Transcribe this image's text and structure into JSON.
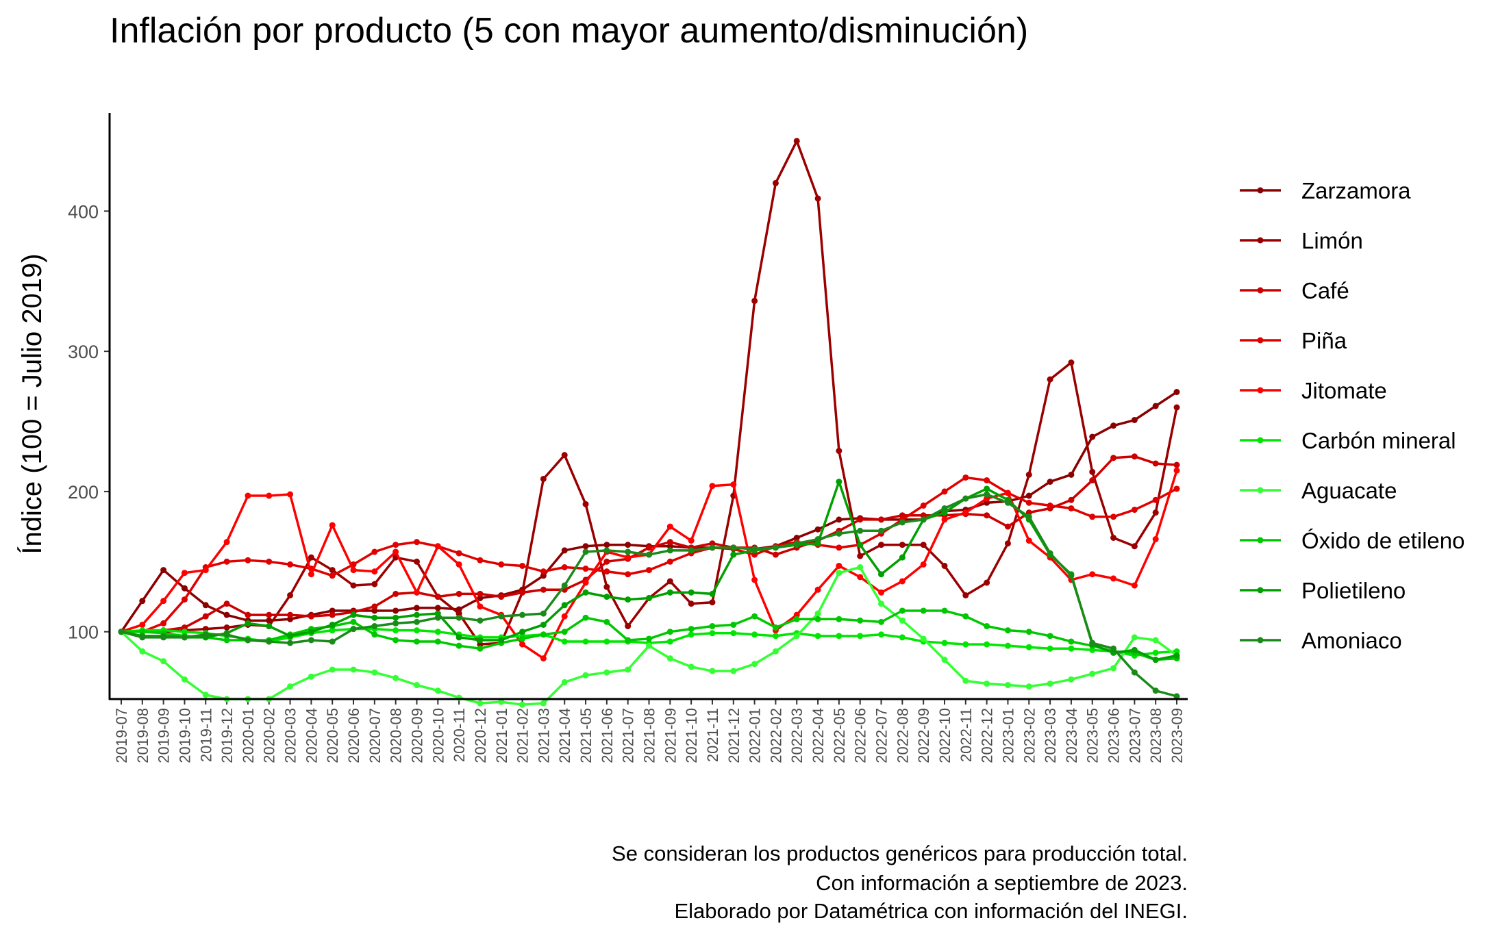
{
  "chart_data": {
    "type": "line",
    "title": "Inflación por producto (5 con mayor aumento/disminución)",
    "ylabel": "Índice (100 = Julio 2019)",
    "xlabel": "",
    "ylim": [
      52,
      470
    ],
    "yticks": [
      100,
      200,
      300,
      400
    ],
    "grid": false,
    "legend_position": "right",
    "caption": [
      "Se consideran los productos genéricos para producción total.",
      "Con información a septiembre de 2023.",
      "Elaborado por Datamétrica con información del INEGI."
    ],
    "categories": [
      "2019-07",
      "2019-08",
      "2019-09",
      "2019-10",
      "2019-11",
      "2019-12",
      "2020-01",
      "2020-02",
      "2020-03",
      "2020-04",
      "2020-05",
      "2020-06",
      "2020-07",
      "2020-08",
      "2020-09",
      "2020-10",
      "2020-11",
      "2020-12",
      "2021-01",
      "2021-02",
      "2021-03",
      "2021-04",
      "2021-05",
      "2021-06",
      "2021-07",
      "2021-08",
      "2021-09",
      "2021-10",
      "2021-11",
      "2021-12",
      "2022-01",
      "2022-02",
      "2022-03",
      "2022-04",
      "2022-05",
      "2022-06",
      "2022-07",
      "2022-08",
      "2022-09",
      "2022-10",
      "2022-11",
      "2022-12",
      "2023-01",
      "2023-02",
      "2023-03",
      "2023-04",
      "2023-05",
      "2023-06",
      "2023-07",
      "2023-08",
      "2023-09"
    ],
    "series": [
      {
        "name": "Zarzamora",
        "color": "#8B0000",
        "values": [
          100,
          122,
          144,
          131,
          119,
          112,
          108,
          108,
          109,
          112,
          115,
          115,
          115,
          115,
          117,
          117,
          116,
          124,
          126,
          130,
          140,
          158,
          161,
          162,
          162,
          161,
          161,
          160,
          160,
          160,
          159,
          161,
          167,
          173,
          180,
          181,
          180,
          180,
          180,
          186,
          187,
          192,
          193,
          197,
          207,
          212,
          239,
          247,
          251,
          261,
          271
        ]
      },
      {
        "name": "Limón",
        "color": "#9B0000",
        "values": [
          100,
          100,
          100,
          101,
          102,
          103,
          105,
          104,
          126,
          153,
          144,
          133,
          134,
          153,
          150,
          125,
          113,
          91,
          92,
          128,
          209,
          226,
          191,
          132,
          104,
          124,
          136,
          120,
          121,
          197,
          336,
          420,
          450,
          409,
          229,
          154,
          162,
          162,
          162,
          147,
          126,
          135,
          163,
          212,
          280,
          292,
          214,
          167,
          161,
          185,
          260
        ]
      },
      {
        "name": "Café",
        "color": "#CC0000",
        "values": [
          100,
          100,
          101,
          103,
          111,
          120,
          112,
          112,
          112,
          111,
          112,
          114,
          118,
          127,
          128,
          125,
          127,
          127,
          125,
          128,
          130,
          130,
          137,
          150,
          152,
          160,
          164,
          160,
          163,
          160,
          160,
          155,
          160,
          165,
          172,
          180,
          180,
          183,
          183,
          183,
          184,
          183,
          175,
          185,
          188,
          194,
          208,
          224,
          225,
          220,
          219
        ]
      },
      {
        "name": "Piña",
        "color": "#E00000",
        "values": [
          100,
          100,
          106,
          123,
          146,
          150,
          151,
          150,
          148,
          145,
          140,
          148,
          157,
          162,
          164,
          161,
          156,
          151,
          148,
          147,
          143,
          146,
          145,
          143,
          141,
          144,
          150,
          156,
          160,
          159,
          155,
          161,
          164,
          162,
          160,
          162,
          170,
          180,
          190,
          200,
          210,
          208,
          199,
          192,
          190,
          188,
          182,
          182,
          187,
          194,
          202
        ]
      },
      {
        "name": "Jitomate",
        "color": "#FF0000",
        "values": [
          100,
          105,
          122,
          142,
          144,
          164,
          197,
          197,
          198,
          141,
          176,
          144,
          143,
          157,
          128,
          161,
          148,
          118,
          112,
          91,
          81,
          111,
          135,
          157,
          153,
          155,
          175,
          165,
          204,
          205,
          137,
          101,
          112,
          130,
          147,
          139,
          128,
          136,
          148,
          180,
          185,
          195,
          199,
          165,
          153,
          137,
          141,
          138,
          133,
          166,
          215
        ]
      },
      {
        "name": "Carbón mineral",
        "color": "#00E600",
        "values": [
          100,
          101,
          101,
          100,
          99,
          97,
          95,
          93,
          96,
          99,
          101,
          102,
          102,
          101,
          101,
          100,
          98,
          96,
          96,
          97,
          98,
          93,
          93,
          93,
          93,
          92,
          93,
          98,
          99,
          99,
          98,
          97,
          99,
          97,
          97,
          97,
          98,
          96,
          93,
          92,
          91,
          91,
          90,
          89,
          88,
          88,
          87,
          86,
          83,
          85,
          86
        ]
      },
      {
        "name": "Aguacate",
        "color": "#33FF33",
        "values": [
          100,
          86,
          79,
          66,
          55,
          52,
          52,
          52,
          61,
          68,
          73,
          73,
          71,
          67,
          62,
          58,
          53,
          49,
          50,
          48,
          49,
          64,
          69,
          71,
          73,
          90,
          81,
          75,
          72,
          72,
          77,
          86,
          97,
          113,
          142,
          146,
          120,
          108,
          95,
          80,
          65,
          63,
          62,
          61,
          63,
          66,
          70,
          74,
          96,
          94,
          83
        ]
      },
      {
        "name": "Óxido de etileno",
        "color": "#00C800",
        "values": [
          100,
          100,
          99,
          97,
          96,
          94,
          94,
          94,
          98,
          102,
          104,
          107,
          98,
          94,
          93,
          93,
          90,
          88,
          92,
          95,
          98,
          100,
          110,
          107,
          94,
          95,
          100,
          102,
          104,
          105,
          111,
          103,
          109,
          109,
          109,
          108,
          107,
          115,
          115,
          115,
          111,
          104,
          101,
          100,
          97,
          93,
          90,
          86,
          85,
          80,
          81
        ]
      },
      {
        "name": "Polietileno",
        "color": "#00A000",
        "values": [
          100,
          97,
          97,
          96,
          96,
          99,
          106,
          104,
          97,
          100,
          105,
          112,
          110,
          110,
          112,
          113,
          96,
          94,
          94,
          100,
          105,
          119,
          128,
          125,
          123,
          124,
          128,
          128,
          127,
          155,
          158,
          160,
          162,
          163,
          207,
          162,
          141,
          153,
          180,
          185,
          195,
          202,
          194,
          180,
          155,
          141,
          91,
          85,
          87,
          80,
          83
        ]
      },
      {
        "name": "Amoniaco",
        "color": "#1A8A1A",
        "values": [
          100,
          96,
          96,
          96,
          98,
          98,
          94,
          93,
          92,
          94,
          93,
          102,
          104,
          106,
          107,
          110,
          110,
          108,
          111,
          112,
          113,
          133,
          157,
          158,
          157,
          155,
          158,
          158,
          160,
          160,
          159,
          160,
          163,
          166,
          170,
          172,
          172,
          178,
          180,
          188,
          195,
          198,
          192,
          182,
          156,
          140,
          92,
          88,
          71,
          58,
          54
        ]
      }
    ]
  }
}
